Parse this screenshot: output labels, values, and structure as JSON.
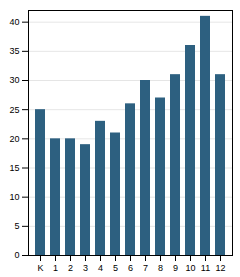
{
  "chart_data": {
    "type": "bar",
    "categories": [
      "K",
      "1",
      "2",
      "3",
      "4",
      "5",
      "6",
      "7",
      "8",
      "9",
      "10",
      "11",
      "12"
    ],
    "values": [
      25,
      20,
      20,
      19,
      23,
      21,
      26,
      30,
      27,
      31,
      36,
      41,
      31
    ],
    "color": "#2d6080",
    "ylim": [
      0,
      42
    ],
    "yticks": [
      0,
      5,
      10,
      15,
      20,
      25,
      30,
      35,
      40
    ],
    "grid": true
  }
}
